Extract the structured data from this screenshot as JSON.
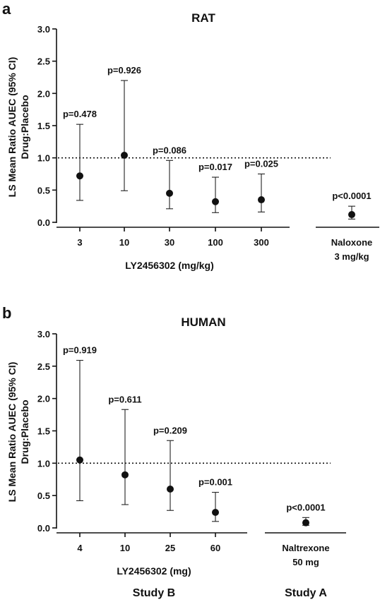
{
  "chart_data": [
    {
      "panel_letter": "a",
      "type": "scatter",
      "title": "RAT",
      "ylabel_line1": "LS Mean Ratio AUEC (95% CI)",
      "ylabel_line2": "Drug:Placebo",
      "ylim": [
        0,
        3.0
      ],
      "yticks": [
        "0.0",
        "0.5",
        "1.0",
        "1.5",
        "2.0",
        "2.5",
        "3.0"
      ],
      "reference_line": 1.0,
      "groups": [
        {
          "xlabel": "LY2456302 (mg/kg)",
          "points": [
            {
              "label": "3",
              "mean": 0.72,
              "lower": 0.34,
              "upper": 1.52,
              "p": "p=0.478"
            },
            {
              "label": "10",
              "mean": 1.04,
              "lower": 0.49,
              "upper": 2.2,
              "p": "p=0.926"
            },
            {
              "label": "30",
              "mean": 0.45,
              "lower": 0.21,
              "upper": 0.96,
              "p": "p=0.086"
            },
            {
              "label": "100",
              "mean": 0.32,
              "lower": 0.15,
              "upper": 0.7,
              "p": "p=0.017"
            },
            {
              "label": "300",
              "mean": 0.35,
              "lower": 0.16,
              "upper": 0.75,
              "p": "p=0.025"
            }
          ]
        },
        {
          "xlabel": "",
          "points": [
            {
              "label": "Naloxone",
              "label2": "3 mg/kg",
              "mean": 0.12,
              "lower": 0.05,
              "upper": 0.25,
              "p": "p<0.0001"
            }
          ]
        }
      ]
    },
    {
      "panel_letter": "b",
      "type": "scatter",
      "title": "HUMAN",
      "ylabel_line1": "LS Mean Ratio AUEC (95% CI)",
      "ylabel_line2": "Drug:Placebo",
      "ylim": [
        0,
        3.0
      ],
      "yticks": [
        "0.0",
        "0.5",
        "1.0",
        "1.5",
        "2.0",
        "2.5",
        "3.0"
      ],
      "reference_line": 1.0,
      "groups": [
        {
          "xlabel": "LY2456302 (mg)",
          "study": "Study B",
          "points": [
            {
              "label": "4",
              "mean": 1.05,
              "lower": 0.42,
              "upper": 2.59,
              "p": "p=0.919"
            },
            {
              "label": "10",
              "mean": 0.82,
              "lower": 0.36,
              "upper": 1.83,
              "p": "p=0.611"
            },
            {
              "label": "25",
              "mean": 0.6,
              "lower": 0.27,
              "upper": 1.35,
              "p": "p=0.209"
            },
            {
              "label": "60",
              "mean": 0.24,
              "lower": 0.1,
              "upper": 0.55,
              "p": "p=0.001"
            }
          ]
        },
        {
          "xlabel": "",
          "study": "Study A",
          "points": [
            {
              "label": "Naltrexone",
              "label2": "50 mg",
              "mean": 0.08,
              "lower": 0.04,
              "upper": 0.16,
              "p": "p<0.0001"
            }
          ]
        }
      ]
    }
  ]
}
